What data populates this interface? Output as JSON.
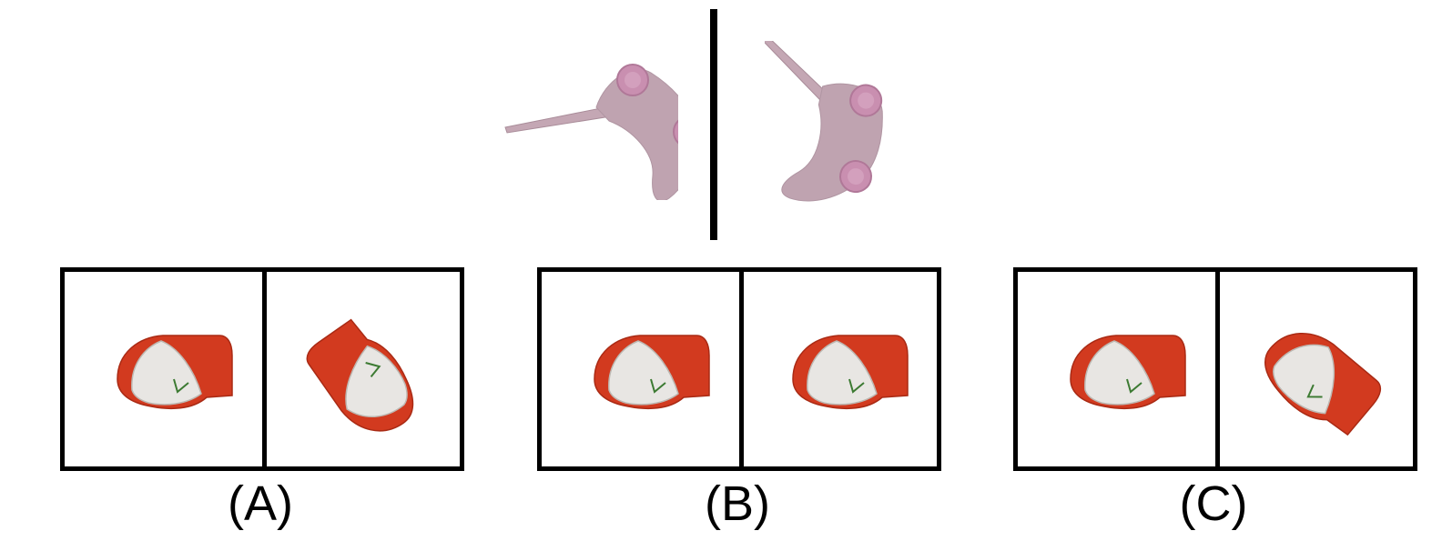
{
  "reference": {
    "left_object": "controller-object",
    "right_object": "controller-object-rotated"
  },
  "options": [
    {
      "label": "(A)",
      "left_icon": "cap-icon",
      "right_icon": "cap-icon-rotated"
    },
    {
      "label": "(B)",
      "left_icon": "cap-icon",
      "right_icon": "cap-icon"
    },
    {
      "label": "(C)",
      "left_icon": "cap-icon",
      "right_icon": "cap-icon-rotated"
    }
  ],
  "colors": {
    "controller": "#bfa3b0",
    "controller_knob": "#c98fb0",
    "cap_red": "#d23a1f",
    "cap_white": "#e8e6e3",
    "cap_logo": "#3c7a32"
  }
}
